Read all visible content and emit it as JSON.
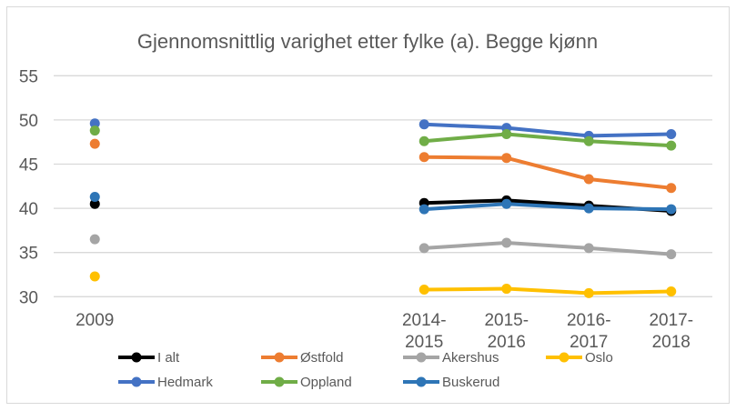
{
  "chart_data": {
    "type": "line",
    "title": "Gjennomsnittlig varighet etter fylke (a). Begge kjønn",
    "categories": [
      "2009",
      "",
      "",
      "",
      "2014-2015",
      "2015-2016",
      "2016-2017",
      "2017-2018"
    ],
    "category_lines": [
      [
        "2009"
      ],
      [],
      [],
      [],
      [
        "2014-",
        "2015"
      ],
      [
        "2015-",
        "2016"
      ],
      [
        "2016-",
        "2017"
      ],
      [
        "2017-",
        "2018"
      ]
    ],
    "ylim": [
      30,
      55
    ],
    "yticks": [
      "30",
      "35",
      "40",
      "45",
      "50",
      "55"
    ],
    "grid": true,
    "legend_position": "bottom",
    "series": [
      {
        "name": "I alt",
        "color": "#000000",
        "values": [
          40.5,
          null,
          null,
          null,
          40.6,
          40.9,
          40.3,
          39.7
        ]
      },
      {
        "name": "Østfold",
        "color": "#ED7D31",
        "values": [
          47.3,
          null,
          null,
          null,
          45.8,
          45.7,
          43.3,
          42.3
        ]
      },
      {
        "name": "Akershus",
        "color": "#A5A5A5",
        "values": [
          36.5,
          null,
          null,
          null,
          35.5,
          36.1,
          35.5,
          34.8
        ]
      },
      {
        "name": "Oslo",
        "color": "#FFC000",
        "values": [
          32.3,
          null,
          null,
          null,
          30.8,
          30.9,
          30.4,
          30.6
        ]
      },
      {
        "name": "Hedmark",
        "color": "#4472C4",
        "values": [
          49.6,
          null,
          null,
          null,
          49.5,
          49.1,
          48.2,
          48.4
        ]
      },
      {
        "name": "Oppland",
        "color": "#70AD47",
        "values": [
          48.8,
          null,
          null,
          null,
          47.6,
          48.4,
          47.6,
          47.1
        ]
      },
      {
        "name": "Buskerud",
        "color": "#2E75B6",
        "values": [
          41.3,
          null,
          null,
          null,
          39.9,
          40.5,
          40.0,
          39.9
        ]
      }
    ]
  }
}
